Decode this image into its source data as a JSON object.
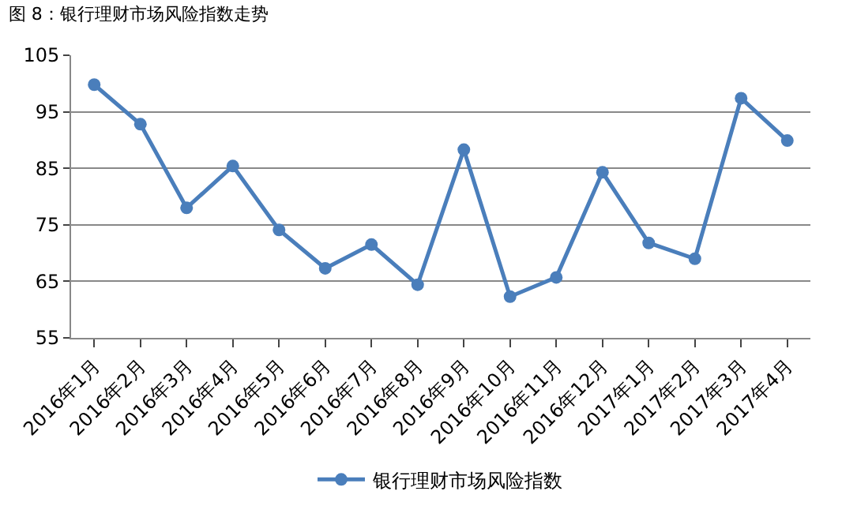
{
  "chart_data": {
    "type": "line",
    "title": "图 8：银行理财市场风险指数走势",
    "categories": [
      "2016年1月",
      "2016年2月",
      "2016年3月",
      "2016年4月",
      "2016年5月",
      "2016年6月",
      "2016年7月",
      "2016年8月",
      "2016年9月",
      "2016年10月",
      "2016年11月",
      "2016年12月",
      "2017年1月",
      "2017年2月",
      "2017年3月",
      "2017年4月"
    ],
    "series": [
      {
        "name": "银行理财市场风险指数",
        "color": "#4a7ebb",
        "values": [
          99.8,
          92.8,
          78,
          85.4,
          74.1,
          67.3,
          71.5,
          64.4,
          88.3,
          62.3,
          65.7,
          84.3,
          71.8,
          69,
          97.4,
          89.9
        ]
      }
    ],
    "ylim": [
      55,
      105
    ],
    "yticks": [
      55,
      65,
      75,
      85,
      95,
      105
    ],
    "grid": "y",
    "legend": "bottom",
    "marker": "circle",
    "line_style": "solid"
  }
}
